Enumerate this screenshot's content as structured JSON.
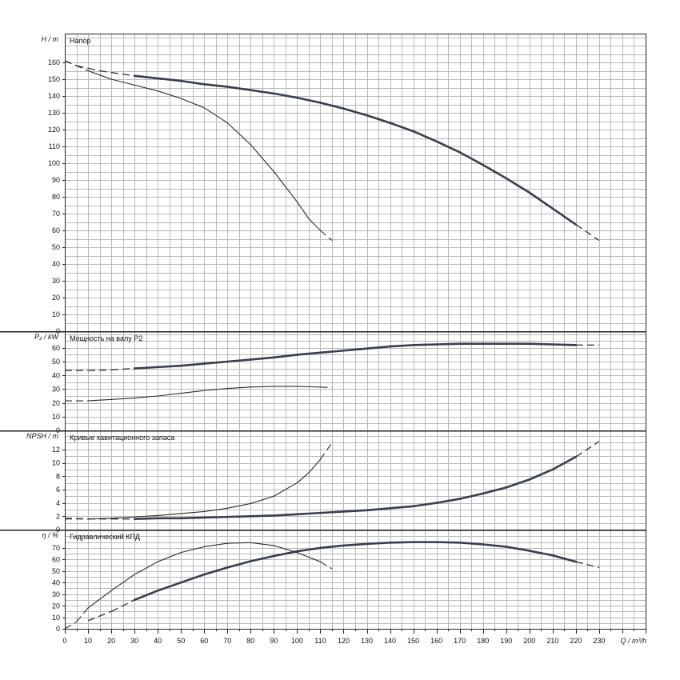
{
  "chart_data": {
    "type": "line",
    "x": {
      "label": "Q / m³/h",
      "range": [
        0,
        250
      ],
      "ticks": [
        0,
        10,
        20,
        30,
        40,
        50,
        60,
        70,
        80,
        90,
        100,
        110,
        120,
        130,
        140,
        150,
        160,
        170,
        180,
        190,
        200,
        210,
        220,
        230
      ]
    },
    "panels": [
      {
        "id": "head",
        "title": "Напор",
        "ylabel": "H / m",
        "ylim": [
          0,
          175
        ],
        "yticks": [
          0,
          10,
          20,
          30,
          40,
          50,
          60,
          70,
          80,
          90,
          100,
          110,
          120,
          130,
          140,
          150,
          160
        ],
        "series": [
          {
            "weight": "thick",
            "points": [
              [
                0,
                161
              ],
              [
                5,
                158
              ],
              [
                10,
                156.5
              ],
              [
                15,
                155
              ],
              [
                20,
                154
              ],
              [
                30,
                152
              ],
              [
                40,
                150.5
              ],
              [
                50,
                149
              ],
              [
                60,
                147
              ],
              [
                70,
                145.5
              ],
              [
                80,
                143.5
              ],
              [
                90,
                141.5
              ],
              [
                100,
                139
              ],
              [
                110,
                136
              ],
              [
                120,
                132.5
              ],
              [
                130,
                128.5
              ],
              [
                140,
                124
              ],
              [
                150,
                119
              ],
              [
                160,
                113
              ],
              [
                170,
                106.5
              ],
              [
                180,
                99
              ],
              [
                190,
                91
              ],
              [
                200,
                82.5
              ],
              [
                210,
                73
              ],
              [
                220,
                63.5
              ],
              [
                230,
                54
              ]
            ],
            "dashed_ranges": [
              [
                0,
                30
              ],
              [
                220,
                230
              ]
            ]
          },
          {
            "weight": "thin",
            "points": [
              [
                0,
                161
              ],
              [
                10,
                155
              ],
              [
                20,
                150
              ],
              [
                30,
                146.5
              ],
              [
                40,
                143
              ],
              [
                50,
                138.5
              ],
              [
                60,
                133
              ],
              [
                70,
                124
              ],
              [
                80,
                111
              ],
              [
                90,
                95
              ],
              [
                100,
                77
              ],
              [
                105,
                67
              ],
              [
                110,
                60
              ],
              [
                115,
                54
              ]
            ],
            "dashed_ranges": [
              [
                0,
                10
              ],
              [
                110,
                115
              ]
            ]
          }
        ]
      },
      {
        "id": "power",
        "title": "Мощность на валу P2",
        "ylabel": "P₂ / kW",
        "ylim": [
          0,
          70
        ],
        "yticks": [
          0,
          10,
          20,
          30,
          40,
          50,
          60
        ],
        "series": [
          {
            "weight": "thick",
            "points": [
              [
                0,
                43.5
              ],
              [
                10,
                43.5
              ],
              [
                20,
                44
              ],
              [
                30,
                45
              ],
              [
                40,
                46
              ],
              [
                50,
                47
              ],
              [
                60,
                48.5
              ],
              [
                70,
                50
              ],
              [
                80,
                51.5
              ],
              [
                90,
                53
              ],
              [
                100,
                55
              ],
              [
                110,
                56.5
              ],
              [
                120,
                58
              ],
              [
                130,
                59.5
              ],
              [
                140,
                61
              ],
              [
                150,
                62
              ],
              [
                160,
                62.5
              ],
              [
                170,
                63
              ],
              [
                180,
                63
              ],
              [
                190,
                63
              ],
              [
                200,
                63
              ],
              [
                210,
                62.5
              ],
              [
                220,
                62
              ],
              [
                230,
                62
              ]
            ],
            "dashed_ranges": [
              [
                0,
                30
              ],
              [
                220,
                230
              ]
            ]
          },
          {
            "weight": "thin",
            "points": [
              [
                0,
                21.5
              ],
              [
                10,
                21.5
              ],
              [
                20,
                22.5
              ],
              [
                30,
                23.5
              ],
              [
                40,
                25
              ],
              [
                50,
                27
              ],
              [
                60,
                29
              ],
              [
                70,
                30.5
              ],
              [
                80,
                31.5
              ],
              [
                90,
                32
              ],
              [
                100,
                32
              ],
              [
                110,
                31.5
              ],
              [
                115,
                31
              ]
            ],
            "dashed_ranges": [
              [
                0,
                10
              ],
              [
                110,
                115
              ]
            ]
          }
        ]
      },
      {
        "id": "npsh",
        "title": "Кривые кавитационного запаса",
        "ylabel": "NPSH / m",
        "ylim": [
          0,
          14
        ],
        "yticks": [
          0,
          2,
          4,
          6,
          8,
          10,
          12
        ],
        "series": [
          {
            "weight": "thick",
            "points": [
              [
                0,
                1.7
              ],
              [
                10,
                1.6
              ],
              [
                20,
                1.6
              ],
              [
                30,
                1.6
              ],
              [
                40,
                1.7
              ],
              [
                50,
                1.7
              ],
              [
                60,
                1.8
              ],
              [
                70,
                1.9
              ],
              [
                80,
                2.0
              ],
              [
                90,
                2.1
              ],
              [
                100,
                2.3
              ],
              [
                110,
                2.5
              ],
              [
                120,
                2.7
              ],
              [
                130,
                2.9
              ],
              [
                140,
                3.2
              ],
              [
                150,
                3.5
              ],
              [
                160,
                4.0
              ],
              [
                170,
                4.6
              ],
              [
                180,
                5.4
              ],
              [
                190,
                6.3
              ],
              [
                200,
                7.5
              ],
              [
                210,
                9.0
              ],
              [
                220,
                10.9
              ],
              [
                230,
                13.2
              ]
            ],
            "dashed_ranges": [
              [
                0,
                30
              ],
              [
                220,
                230
              ]
            ]
          },
          {
            "weight": "thin",
            "points": [
              [
                0,
                1.6
              ],
              [
                10,
                1.6
              ],
              [
                20,
                1.7
              ],
              [
                30,
                1.9
              ],
              [
                40,
                2.1
              ],
              [
                50,
                2.4
              ],
              [
                60,
                2.7
              ],
              [
                70,
                3.2
              ],
              [
                80,
                3.9
              ],
              [
                90,
                5.0
              ],
              [
                100,
                7.0
              ],
              [
                105,
                8.5
              ],
              [
                110,
                10.5
              ],
              [
                115,
                13.0
              ]
            ],
            "dashed_ranges": [
              [
                0,
                10
              ],
              [
                110,
                115
              ]
            ]
          }
        ]
      },
      {
        "id": "efficiency",
        "title": "Гидравлический КПД",
        "ylabel": "η / %",
        "ylim": [
          0,
          78
        ],
        "yticks": [
          0,
          10,
          20,
          30,
          40,
          50,
          60,
          70
        ],
        "series": [
          {
            "weight": "thick",
            "points": [
              [
                10,
                7
              ],
              [
                20,
                15
              ],
              [
                30,
                25
              ],
              [
                40,
                33
              ],
              [
                50,
                40
              ],
              [
                60,
                47
              ],
              [
                70,
                53
              ],
              [
                80,
                58.5
              ],
              [
                90,
                63
              ],
              [
                100,
                67
              ],
              [
                110,
                70
              ],
              [
                120,
                72
              ],
              [
                130,
                73.5
              ],
              [
                140,
                74.5
              ],
              [
                150,
                75
              ],
              [
                160,
                75
              ],
              [
                170,
                74.5
              ],
              [
                180,
                73
              ],
              [
                190,
                71
              ],
              [
                200,
                67.5
              ],
              [
                210,
                63.5
              ],
              [
                220,
                58
              ],
              [
                230,
                53
              ]
            ],
            "dashed_ranges": [
              [
                10,
                30
              ],
              [
                220,
                230
              ]
            ]
          },
          {
            "weight": "thin",
            "points": [
              [
                0,
                0
              ],
              [
                5,
                6
              ],
              [
                10,
                18
              ],
              [
                20,
                33
              ],
              [
                30,
                47
              ],
              [
                40,
                58
              ],
              [
                50,
                66
              ],
              [
                60,
                71
              ],
              [
                70,
                74
              ],
              [
                80,
                74.5
              ],
              [
                90,
                72
              ],
              [
                100,
                66
              ],
              [
                110,
                58
              ],
              [
                115,
                52
              ]
            ],
            "dashed_ranges": [
              [
                0,
                10
              ],
              [
                110,
                115
              ]
            ]
          }
        ]
      }
    ]
  }
}
